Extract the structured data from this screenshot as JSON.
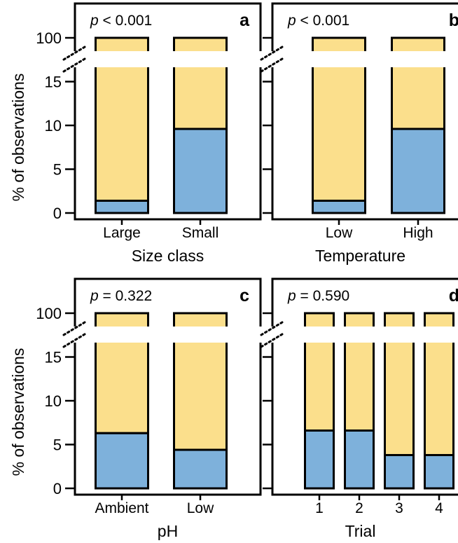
{
  "figure": {
    "ylabel": "% of observations",
    "y_ticks": [
      "0",
      "5",
      "10",
      "15",
      "100"
    ]
  },
  "colors": {
    "upper": "#fbdf8c",
    "lower": "#7eb1db",
    "stroke": "#000000"
  },
  "chart_data": [
    {
      "type": "bar",
      "panel": "a",
      "stacked": true,
      "axis_break": [
        17,
        100
      ],
      "ylim": [
        0,
        100
      ],
      "p_value": "< 0.001",
      "xlabel": "Size class",
      "ylabel": "% of observations",
      "categories": [
        "Large",
        "Small"
      ],
      "series": [
        {
          "values": [
            1.4,
            9.6
          ]
        },
        {
          "values": [
            98.6,
            90.4
          ]
        }
      ]
    },
    {
      "type": "bar",
      "panel": "b",
      "stacked": true,
      "axis_break": [
        17,
        100
      ],
      "ylim": [
        0,
        100
      ],
      "p_value": "< 0.001",
      "xlabel": "Temperature",
      "ylabel": "",
      "categories": [
        "Low",
        "High"
      ],
      "series": [
        {
          "values": [
            1.4,
            9.6
          ]
        },
        {
          "values": [
            98.6,
            90.4
          ]
        }
      ]
    },
    {
      "type": "bar",
      "panel": "c",
      "stacked": true,
      "axis_break": [
        17,
        100
      ],
      "ylim": [
        0,
        100
      ],
      "p_value": "= 0.322",
      "xlabel": "pH",
      "ylabel": "% of observations",
      "categories": [
        "Ambient",
        "Low"
      ],
      "series": [
        {
          "values": [
            6.3,
            4.4
          ]
        },
        {
          "values": [
            93.7,
            95.6
          ]
        }
      ]
    },
    {
      "type": "bar",
      "panel": "d",
      "stacked": true,
      "axis_break": [
        17,
        100
      ],
      "ylim": [
        0,
        100
      ],
      "p_value": "= 0.590",
      "xlabel": "Trial",
      "ylabel": "",
      "categories": [
        "1",
        "2",
        "3",
        "4"
      ],
      "series": [
        {
          "values": [
            6.6,
            6.6,
            3.8,
            3.8
          ]
        },
        {
          "values": [
            93.4,
            93.4,
            96.2,
            96.2
          ]
        }
      ]
    }
  ]
}
